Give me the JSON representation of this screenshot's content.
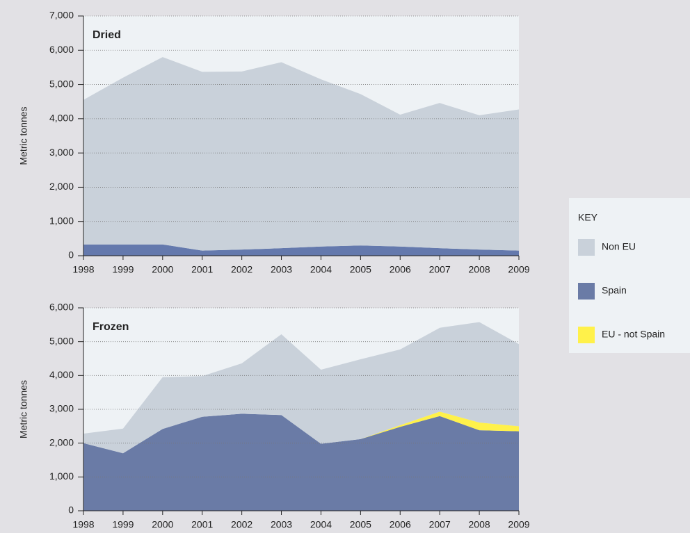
{
  "chart_data": [
    {
      "type": "stacked-area",
      "title": "Dried",
      "y_label": "Metric tonnes",
      "categories": [
        "1998",
        "1999",
        "2000",
        "2001",
        "2002",
        "2003",
        "2004",
        "2005",
        "2006",
        "2007",
        "2008",
        "2009"
      ],
      "series": [
        {
          "name": "Spain",
          "color": "#6479ad",
          "values": [
            330,
            330,
            330,
            150,
            180,
            220,
            270,
            300,
            270,
            220,
            180,
            150
          ]
        },
        {
          "name": "EU - not Spain",
          "color": "#fff14a",
          "values": [
            0,
            0,
            0,
            0,
            0,
            0,
            0,
            0,
            0,
            0,
            0,
            0
          ]
        },
        {
          "name": "Non EU",
          "color": "#c9d1da",
          "values": [
            4220,
            4870,
            5470,
            5220,
            5200,
            5430,
            4880,
            4420,
            3850,
            4240,
            3920,
            4120
          ]
        }
      ],
      "ylim": [
        0,
        7000
      ],
      "yticks": [
        0,
        {
          "value": 1000,
          "label": "1,000"
        },
        {
          "value": 2000,
          "label": "2,000"
        },
        {
          "value": 3000,
          "label": "3,000"
        },
        {
          "value": 4000,
          "label": "4,000"
        },
        {
          "value": 5000,
          "label": "5,000"
        },
        {
          "value": 6000,
          "label": "6,000"
        },
        {
          "value": 7000,
          "label": "7,000"
        }
      ],
      "grid": true
    },
    {
      "type": "stacked-area",
      "title": "Frozen",
      "y_label": "Metric tonnes",
      "categories": [
        "1998",
        "1999",
        "2000",
        "2001",
        "2002",
        "2003",
        "2004",
        "2005",
        "2006",
        "2007",
        "2008",
        "2009"
      ],
      "series": [
        {
          "name": "Spain",
          "color": "#6a7ba6",
          "values": [
            2000,
            1700,
            2420,
            2780,
            2870,
            2830,
            1980,
            2120,
            2480,
            2800,
            2380,
            2350
          ]
        },
        {
          "name": "EU - not Spain",
          "color": "#fff14a",
          "values": [
            0,
            0,
            0,
            0,
            0,
            0,
            0,
            0,
            50,
            130,
            230,
            150
          ]
        },
        {
          "name": "Non EU",
          "color": "#c9d1da",
          "values": [
            280,
            730,
            1530,
            1200,
            1490,
            2390,
            2190,
            2360,
            2240,
            2480,
            2970,
            2430
          ]
        }
      ],
      "ylim": [
        0,
        6000
      ],
      "yticks": [
        0,
        {
          "value": 1000,
          "label": "1,000"
        },
        {
          "value": 2000,
          "label": "2,000"
        },
        {
          "value": 3000,
          "label": "3,000"
        },
        {
          "value": 4000,
          "label": "4,000"
        },
        {
          "value": 5000,
          "label": "5,000"
        },
        {
          "value": 6000,
          "label": "6,000"
        }
      ],
      "grid": true,
      "legend_title": "KEY",
      "legend": "right"
    }
  ]
}
